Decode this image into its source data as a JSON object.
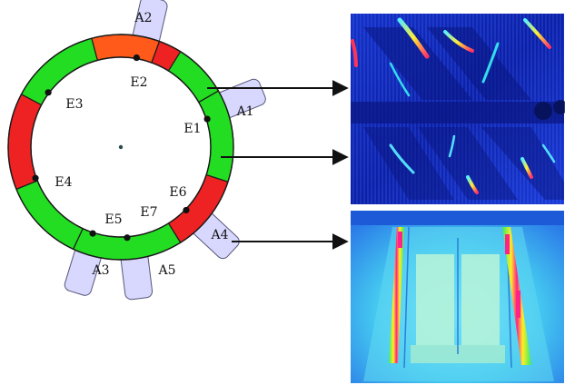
{
  "colors": {
    "ring_green": "#22dd22",
    "ring_red": "#ee2222",
    "ring_orange": "#ff5a1a",
    "ring_outline": "#1a1a1a",
    "tab_fill": "#d8d8ff",
    "tab_stroke": "#555577",
    "thermal_deep": "#0a1a9a",
    "thermal_mid": "#2a66ff",
    "thermal_cyan": "#33ddee",
    "thermal_hot": "#ff2288"
  },
  "segments": [
    {
      "id": "s1",
      "color": "green"
    },
    {
      "id": "s2",
      "color": "red"
    },
    {
      "id": "s3",
      "color": "green"
    },
    {
      "id": "s4",
      "color": "red"
    },
    {
      "id": "s5",
      "color": "green"
    },
    {
      "id": "s6",
      "color": "green"
    },
    {
      "id": "s7",
      "color": "red"
    },
    {
      "id": "s8",
      "color": "green"
    },
    {
      "id": "s9",
      "color": "orange"
    },
    {
      "id": "s10",
      "color": "red"
    }
  ],
  "sensors_e": [
    {
      "id": "E1",
      "label": "E1"
    },
    {
      "id": "E2",
      "label": "E2"
    },
    {
      "id": "E3",
      "label": "E3"
    },
    {
      "id": "E4",
      "label": "E4"
    },
    {
      "id": "E5",
      "label": "E5"
    },
    {
      "id": "E6",
      "label": "E6"
    },
    {
      "id": "E7",
      "label": "E7"
    }
  ],
  "sensors_a": [
    {
      "id": "A1",
      "label": "A1"
    },
    {
      "id": "A2",
      "label": "A2"
    },
    {
      "id": "A3",
      "label": "A3"
    },
    {
      "id": "A4",
      "label": "A4"
    },
    {
      "id": "A5",
      "label": "A5"
    }
  ],
  "arrows": [
    {
      "id": "arrow-1",
      "from": "ring-upper-right",
      "to": "thermal-image-top"
    },
    {
      "id": "arrow-2",
      "from": "ring-right",
      "to": "thermal-image-top"
    },
    {
      "id": "arrow-3",
      "from": "A4",
      "to": "thermal-image-bottom"
    }
  ],
  "images": [
    {
      "id": "thermal-image-top",
      "desc": "blue thermal map with diagonal hot streaks"
    },
    {
      "id": "thermal-image-bottom",
      "desc": "cyan thermal map with two hot vertical bands"
    }
  ]
}
